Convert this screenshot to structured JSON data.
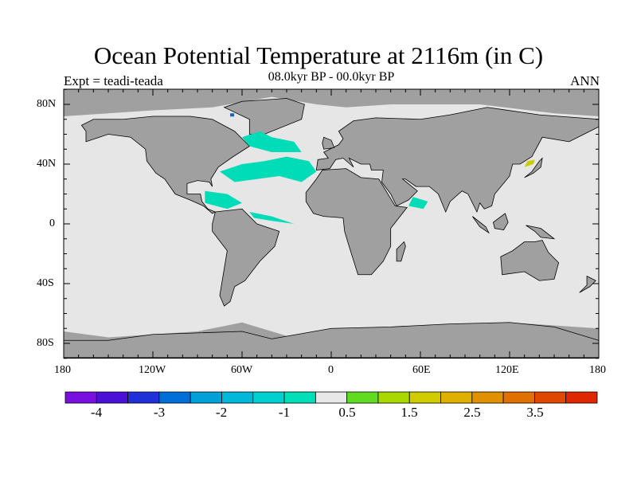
{
  "title": "Ocean Potential Temperature at 2116m (in C)",
  "subtitle": "08.0kyr BP - 00.0kyr BP",
  "expt_label": "Expt = teadi-teada",
  "season": "ANN",
  "lat_ticks": [
    "80N",
    "40N",
    "0",
    "40S",
    "80S"
  ],
  "lon_ticks": [
    "180",
    "120W",
    "60W",
    "0",
    "60E",
    "120E",
    "180"
  ],
  "colors": {
    "land": "#a0a0a0",
    "ocean": "#e6e6e6",
    "teal": "#00dcb8",
    "yellow": "#c8cc00",
    "blue": "#1060d0"
  },
  "colorbar": {
    "colors": [
      "#7a10e0",
      "#4a10d8",
      "#2030d8",
      "#0070d8",
      "#00a0d8",
      "#00b8d8",
      "#00d0d0",
      "#00e0b8",
      "#e8e8e8",
      "#60dc20",
      "#a8d800",
      "#d0cc00",
      "#e0b000",
      "#e09000",
      "#e07000",
      "#e04800",
      "#e02800"
    ],
    "labels": [
      "-4",
      "-3",
      "-2",
      "-1",
      "0.5",
      "1.5",
      "2.5",
      "3.5"
    ]
  }
}
